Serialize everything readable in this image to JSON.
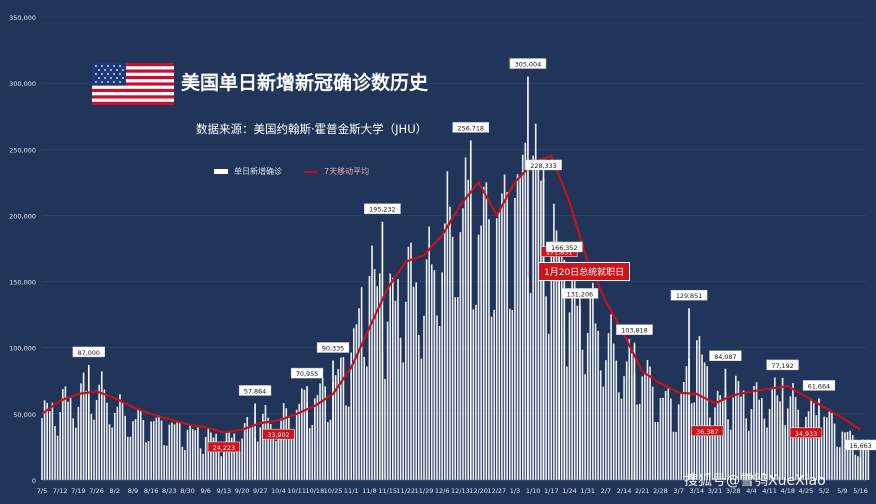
{
  "title": "美国单日新增新冠确诊数历史",
  "source": "数据来源：美国约翰斯·霍普金斯大学（JHU）",
  "legend": {
    "bars": "单日新增确诊",
    "line": "7天移动平均"
  },
  "annotation_event": "1月20日总统就职日",
  "watermark": "搜狐号@雪鸮XueXiao",
  "colors": {
    "background": "#213459",
    "bars": "#ffffff",
    "average_line": "#c0141a",
    "label_red": "#d0131b"
  },
  "chart_data": {
    "type": "bar",
    "title": "美国单日新增新冠确诊数历史",
    "ylim": [
      0,
      350000
    ],
    "yticks": [
      "0",
      "50,000",
      "100,000",
      "150,000",
      "200,000",
      "250,000",
      "300,000",
      "350,000"
    ],
    "xticks": [
      "7/5",
      "7/12",
      "7/19",
      "7/26",
      "8/2",
      "8/9",
      "8/16",
      "8/23",
      "8/30",
      "9/6",
      "9/13",
      "9/20",
      "9/27",
      "10/4",
      "10/11",
      "10/18",
      "10/25",
      "11/1",
      "11/8",
      "11/15",
      "11/22",
      "11/29",
      "12/6",
      "12/13",
      "12/20",
      "12/27",
      "1/3",
      "1/10",
      "1/17",
      "1/24",
      "1/31",
      "2/7",
      "2/14",
      "2/21",
      "2/28",
      "3/7",
      "3/14",
      "3/21",
      "3/28",
      "4/4",
      "4/11",
      "4/18",
      "4/25",
      "5/2",
      "5/9",
      "5/16"
    ],
    "weekly_peaks": [
      62000,
      72000,
      80000,
      87000,
      70000,
      58000,
      55000,
      51000,
      47000,
      42000,
      38000,
      45000,
      57864,
      54000,
      70955,
      78000,
      90335,
      118000,
      195232,
      160000,
      190000,
      180000,
      225000,
      256718,
      240000,
      245000,
      260000,
      305004,
      228333,
      175000,
      160000,
      131206,
      110000,
      103818,
      78000,
      70000,
      129851,
      70000,
      84087,
      76000,
      78000,
      77192,
      65000,
      61664,
      45000,
      35000
    ],
    "moving_average_weekly": [
      50000,
      60000,
      65000,
      67000,
      62000,
      55000,
      50000,
      46000,
      42000,
      40000,
      36000,
      38000,
      43000,
      45000,
      50000,
      56000,
      65000,
      85000,
      115000,
      145000,
      165000,
      170000,
      185000,
      208000,
      225000,
      200000,
      225000,
      240000,
      245000,
      210000,
      165000,
      135000,
      110000,
      82000,
      73000,
      66000,
      65000,
      58000,
      64000,
      67000,
      69000,
      71000,
      63000,
      55000,
      47000,
      38000
    ],
    "labels": [
      {
        "date": "7/23",
        "value": "87,000",
        "style": "box"
      },
      {
        "date": "9/13",
        "value": "24,223",
        "style": "red"
      },
      {
        "date": "9/25",
        "value": "57,864",
        "style": "box"
      },
      {
        "date": "10/4",
        "value": "33,902",
        "style": "red"
      },
      {
        "date": "10/15",
        "value": "70,955",
        "style": "box"
      },
      {
        "date": "10/25",
        "value": "90,335",
        "style": "box"
      },
      {
        "date": "11/13",
        "value": "195,232",
        "style": "box"
      },
      {
        "date": "12/17",
        "value": "256,718",
        "style": "box"
      },
      {
        "date": "1/8",
        "value": "305,004",
        "style": "box"
      },
      {
        "date": "1/14",
        "value": "228,333",
        "style": "box"
      },
      {
        "date": "1/20",
        "value": "171,831",
        "style": "red"
      },
      {
        "date": "1/22",
        "value": "166,352",
        "style": "box"
      },
      {
        "date": "1/28",
        "value": "131,206",
        "style": "box"
      },
      {
        "date": "2/18",
        "value": "103,818",
        "style": "box"
      },
      {
        "date": "3/11",
        "value": "129,851",
        "style": "box"
      },
      {
        "date": "3/18",
        "value": "36,387",
        "style": "red"
      },
      {
        "date": "3/25",
        "value": "84,087",
        "style": "box"
      },
      {
        "date": "4/16",
        "value": "77,192",
        "style": "box"
      },
      {
        "date": "4/25",
        "value": "34,933",
        "style": "red"
      },
      {
        "date": "4/30",
        "value": "61,664",
        "style": "box"
      },
      {
        "date": "5/16",
        "value": "16,663",
        "style": "box"
      }
    ]
  }
}
